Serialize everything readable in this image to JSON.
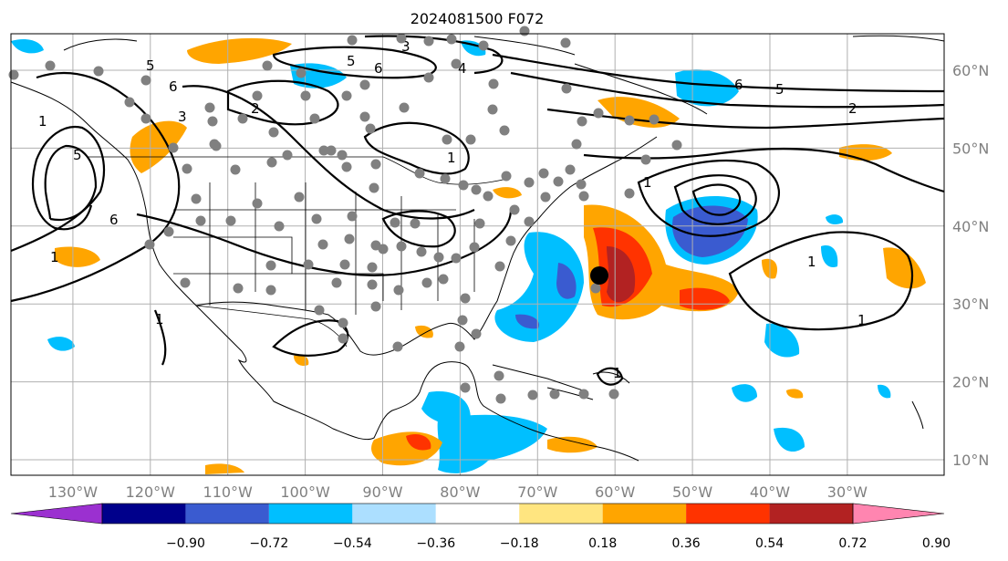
{
  "title": "2024081500 F072",
  "lat_labels": [
    {
      "deg": 60,
      "text": "60°N"
    },
    {
      "deg": 50,
      "text": "50°N"
    },
    {
      "deg": 40,
      "text": "40°N"
    },
    {
      "deg": 30,
      "text": "30°N"
    },
    {
      "deg": 20,
      "text": "20°N"
    },
    {
      "deg": 10,
      "text": "10°N"
    }
  ],
  "lon_labels": [
    {
      "deg": -130,
      "text": "130°W"
    },
    {
      "deg": -120,
      "text": "120°W"
    },
    {
      "deg": -110,
      "text": "110°W"
    },
    {
      "deg": -100,
      "text": "100°W"
    },
    {
      "deg": -90,
      "text": "90°W"
    },
    {
      "deg": -80,
      "text": "80°W"
    },
    {
      "deg": -70,
      "text": "70°W"
    },
    {
      "deg": -60,
      "text": "60°W"
    },
    {
      "deg": -50,
      "text": "50°W"
    },
    {
      "deg": -40,
      "text": "40°W"
    },
    {
      "deg": -30,
      "text": "30°W"
    }
  ],
  "colorbar": {
    "labels": [
      "−0.90",
      "−0.72",
      "−0.54",
      "−0.36",
      "−0.18",
      "0.18",
      "0.36",
      "0.54",
      "0.72",
      "0.90"
    ],
    "colors": [
      "#9b30d0",
      "#00008b",
      "#3a5bd0",
      "#00bfff",
      "#acdfff",
      "#ffffff",
      "#ffe580",
      "#ffa500",
      "#ff3300",
      "#b22222",
      "#ff85b0"
    ]
  },
  "contour_labels": [
    "6",
    "5",
    "2",
    "1",
    "4",
    "3"
  ],
  "marker": {
    "label": "storm-center-marker",
    "lon": -65,
    "lat": 34
  }
}
